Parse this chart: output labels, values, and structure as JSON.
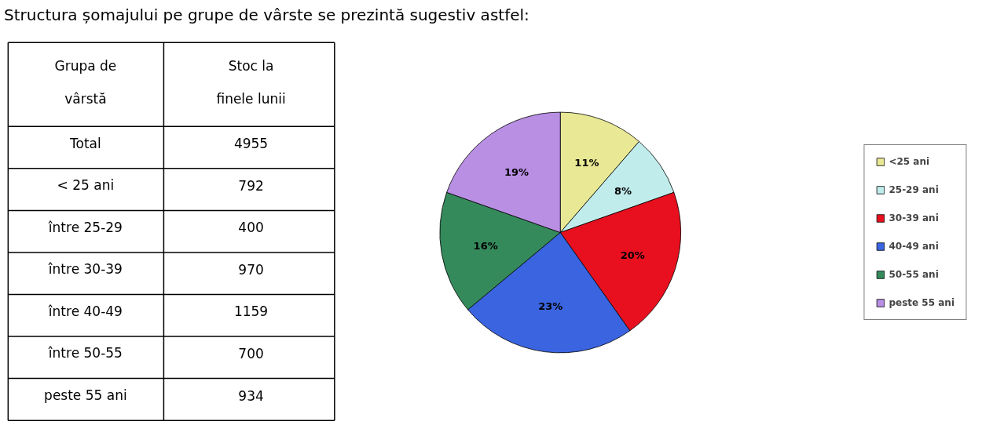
{
  "chart_data": [
    {
      "type": "other",
      "title": "Structura șomajului pe grupe de vârste se prezintă sugestiv astfel:",
      "annotations": [
        "Grupa de vârstă",
        "Stoc la finele lunii"
      ],
      "categories": [
        "Total",
        "< 25 ani",
        "între 25-29",
        "între 30-39",
        "între 40-49",
        "între 50-55",
        "peste 55 ani"
      ],
      "values": [
        4955,
        792,
        400,
        970,
        1159,
        700,
        934
      ],
      "data_labels": true
    },
    {
      "type": "pie",
      "categories": [
        "<25 ani",
        "25-29 ani",
        "30-39 ani",
        "40-49 ani",
        "50-55 ani",
        "peste 55 ani"
      ],
      "values": [
        11,
        8,
        20,
        23,
        16,
        19
      ],
      "colors": [
        "#e9e995",
        "#c0ecec",
        "#e8101e",
        "#3a64e0",
        "#358a5c",
        "#b98fe4"
      ],
      "value_labels": [
        "11%",
        "8%",
        "20%",
        "23%",
        "16%",
        "19%"
      ],
      "legend": "right"
    }
  ]
}
